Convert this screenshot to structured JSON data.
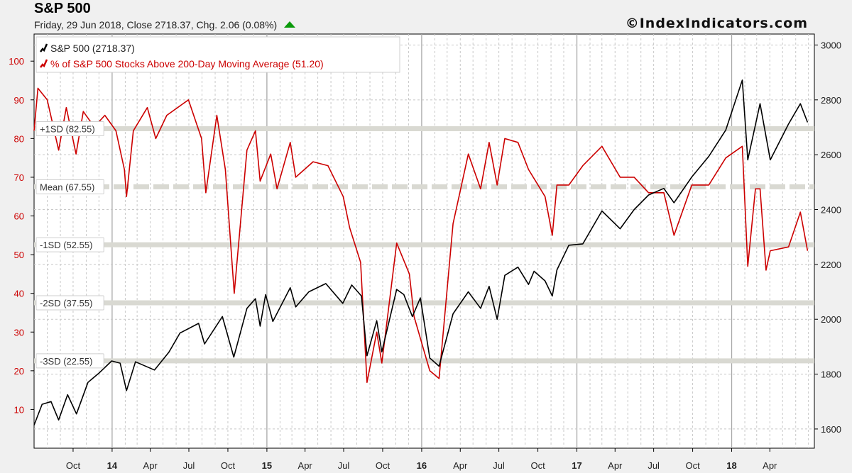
{
  "header": {
    "title": "S&P 500",
    "subtitle": "Friday, 29 Jun 2018, Close 2718.37, Chg. 2.06 (0.08%)",
    "brand": "©IndexIndicators.com"
  },
  "colors": {
    "sp500": "#000000",
    "pct": "#cc0000",
    "band": "#d9d9d2"
  },
  "chart_data": {
    "type": "line",
    "title": "S&P 500",
    "legend_placement": "top-left",
    "grid": true,
    "x_ticks": [
      "Oct",
      "14",
      "Apr",
      "Jul",
      "Oct",
      "15",
      "Apr",
      "Jul",
      "Oct",
      "16",
      "Apr",
      "Jul",
      "Oct",
      "17",
      "Apr",
      "Jul",
      "Oct",
      "18",
      "Apr"
    ],
    "xlim": [
      "2013-07-01",
      "2018-07-15"
    ],
    "left_axis": {
      "ticks": [
        10,
        20,
        30,
        40,
        50,
        60,
        70,
        80,
        90,
        100
      ],
      "range": [
        0,
        107
      ],
      "color": "#cc0000"
    },
    "right_axis": {
      "ticks": [
        1600,
        1800,
        2000,
        2200,
        2400,
        2600,
        2800,
        3000
      ],
      "range": [
        1530,
        3040
      ]
    },
    "bands": [
      {
        "label": "+1SD (82.55)",
        "value": 82.55
      },
      {
        "label": "Mean (67.55)",
        "value": 67.55
      },
      {
        "label": "-1SD (52.55)",
        "value": 52.55
      },
      {
        "label": "-2SD (37.55)",
        "value": 37.55
      },
      {
        "label": "-3SD (22.55)",
        "value": 22.55
      }
    ],
    "series": [
      {
        "name": "S&P 500 (2718.37)",
        "axis": "right",
        "points": [
          [
            "2013-07-01",
            1614
          ],
          [
            "2013-07-20",
            1690
          ],
          [
            "2013-08-10",
            1700
          ],
          [
            "2013-08-28",
            1633
          ],
          [
            "2013-09-18",
            1725
          ],
          [
            "2013-10-09",
            1655
          ],
          [
            "2013-11-05",
            1770
          ],
          [
            "2013-12-02",
            1805
          ],
          [
            "2013-12-31",
            1848
          ],
          [
            "2014-01-20",
            1840
          ],
          [
            "2014-02-04",
            1740
          ],
          [
            "2014-02-25",
            1845
          ],
          [
            "2014-04-11",
            1815
          ],
          [
            "2014-05-15",
            1880
          ],
          [
            "2014-06-10",
            1950
          ],
          [
            "2014-07-24",
            1985
          ],
          [
            "2014-08-07",
            1910
          ],
          [
            "2014-09-18",
            2010
          ],
          [
            "2014-10-15",
            1862
          ],
          [
            "2014-11-15",
            2040
          ],
          [
            "2014-12-05",
            2075
          ],
          [
            "2014-12-16",
            1975
          ],
          [
            "2014-12-29",
            2090
          ],
          [
            "2015-01-15",
            1992
          ],
          [
            "2015-02-25",
            2115
          ],
          [
            "2015-03-10",
            2045
          ],
          [
            "2015-04-10",
            2100
          ],
          [
            "2015-05-20",
            2130
          ],
          [
            "2015-06-29",
            2058
          ],
          [
            "2015-07-20",
            2125
          ],
          [
            "2015-08-12",
            2085
          ],
          [
            "2015-08-25",
            1867
          ],
          [
            "2015-09-17",
            1995
          ],
          [
            "2015-09-29",
            1881
          ],
          [
            "2015-11-03",
            2109
          ],
          [
            "2015-11-20",
            2090
          ],
          [
            "2015-12-10",
            2010
          ],
          [
            "2015-12-29",
            2078
          ],
          [
            "2016-01-20",
            1859
          ],
          [
            "2016-02-11",
            1829
          ],
          [
            "2016-03-15",
            2020
          ],
          [
            "2016-04-20",
            2100
          ],
          [
            "2016-05-19",
            2040
          ],
          [
            "2016-06-08",
            2120
          ],
          [
            "2016-06-27",
            2000
          ],
          [
            "2016-07-15",
            2160
          ],
          [
            "2016-08-15",
            2190
          ],
          [
            "2016-09-09",
            2127
          ],
          [
            "2016-09-22",
            2175
          ],
          [
            "2016-10-18",
            2140
          ],
          [
            "2016-11-04",
            2085
          ],
          [
            "2016-11-15",
            2180
          ],
          [
            "2016-12-13",
            2270
          ],
          [
            "2017-01-15",
            2275
          ],
          [
            "2017-03-01",
            2395
          ],
          [
            "2017-04-13",
            2330
          ],
          [
            "2017-05-16",
            2400
          ],
          [
            "2017-06-19",
            2453
          ],
          [
            "2017-07-25",
            2477
          ],
          [
            "2017-08-18",
            2425
          ],
          [
            "2017-09-29",
            2519
          ],
          [
            "2017-11-08",
            2594
          ],
          [
            "2017-12-18",
            2690
          ],
          [
            "2018-01-26",
            2872
          ],
          [
            "2018-02-08",
            2581
          ],
          [
            "2018-03-09",
            2786
          ],
          [
            "2018-04-02",
            2581
          ],
          [
            "2018-05-15",
            2712
          ],
          [
            "2018-06-12",
            2786
          ],
          [
            "2018-06-29",
            2718
          ]
        ]
      },
      {
        "name": "% of S&P 500 Stocks Above 200-Day Moving Average (51.20)",
        "axis": "left",
        "points": [
          [
            "2013-07-01",
            82
          ],
          [
            "2013-07-10",
            93
          ],
          [
            "2013-08-01",
            90
          ],
          [
            "2013-08-28",
            77
          ],
          [
            "2013-09-15",
            88
          ],
          [
            "2013-10-08",
            76
          ],
          [
            "2013-10-25",
            87
          ],
          [
            "2013-11-20",
            83
          ],
          [
            "2013-12-15",
            86
          ],
          [
            "2014-01-10",
            82
          ],
          [
            "2014-01-30",
            72
          ],
          [
            "2014-02-04",
            65
          ],
          [
            "2014-02-20",
            82
          ],
          [
            "2014-03-25",
            88
          ],
          [
            "2014-04-14",
            80
          ],
          [
            "2014-05-10",
            86
          ],
          [
            "2014-06-30",
            90
          ],
          [
            "2014-07-31",
            80
          ],
          [
            "2014-08-10",
            66
          ],
          [
            "2014-09-05",
            86
          ],
          [
            "2014-09-25",
            72
          ],
          [
            "2014-10-16",
            40
          ],
          [
            "2014-11-15",
            77
          ],
          [
            "2014-12-05",
            82
          ],
          [
            "2014-12-16",
            69
          ],
          [
            "2015-01-10",
            76
          ],
          [
            "2015-01-25",
            67
          ],
          [
            "2015-02-25",
            79
          ],
          [
            "2015-03-10",
            70
          ],
          [
            "2015-04-20",
            74
          ],
          [
            "2015-05-25",
            73
          ],
          [
            "2015-06-30",
            65
          ],
          [
            "2015-07-15",
            57
          ],
          [
            "2015-08-10",
            48
          ],
          [
            "2015-08-25",
            17
          ],
          [
            "2015-09-17",
            30
          ],
          [
            "2015-09-29",
            22
          ],
          [
            "2015-11-03",
            53
          ],
          [
            "2015-12-03",
            45
          ],
          [
            "2015-12-14",
            34
          ],
          [
            "2016-01-20",
            20
          ],
          [
            "2016-02-11",
            18
          ],
          [
            "2016-03-15",
            58
          ],
          [
            "2016-04-20",
            76
          ],
          [
            "2016-05-19",
            67
          ],
          [
            "2016-06-08",
            79
          ],
          [
            "2016-06-27",
            68
          ],
          [
            "2016-07-15",
            80
          ],
          [
            "2016-08-15",
            79
          ],
          [
            "2016-09-09",
            72
          ],
          [
            "2016-10-18",
            65
          ],
          [
            "2016-11-04",
            55
          ],
          [
            "2016-11-15",
            68
          ],
          [
            "2016-12-13",
            68
          ],
          [
            "2017-01-15",
            73
          ],
          [
            "2017-03-01",
            78
          ],
          [
            "2017-04-13",
            70
          ],
          [
            "2017-05-16",
            70
          ],
          [
            "2017-06-19",
            66
          ],
          [
            "2017-07-25",
            66
          ],
          [
            "2017-08-18",
            55
          ],
          [
            "2017-09-29",
            68
          ],
          [
            "2017-11-08",
            68
          ],
          [
            "2017-12-18",
            75
          ],
          [
            "2018-01-26",
            78
          ],
          [
            "2018-02-08",
            47
          ],
          [
            "2018-02-26",
            67
          ],
          [
            "2018-03-09",
            67
          ],
          [
            "2018-03-23",
            46
          ],
          [
            "2018-04-02",
            51
          ],
          [
            "2018-05-15",
            52
          ],
          [
            "2018-06-12",
            61
          ],
          [
            "2018-06-29",
            51
          ]
        ]
      }
    ]
  }
}
